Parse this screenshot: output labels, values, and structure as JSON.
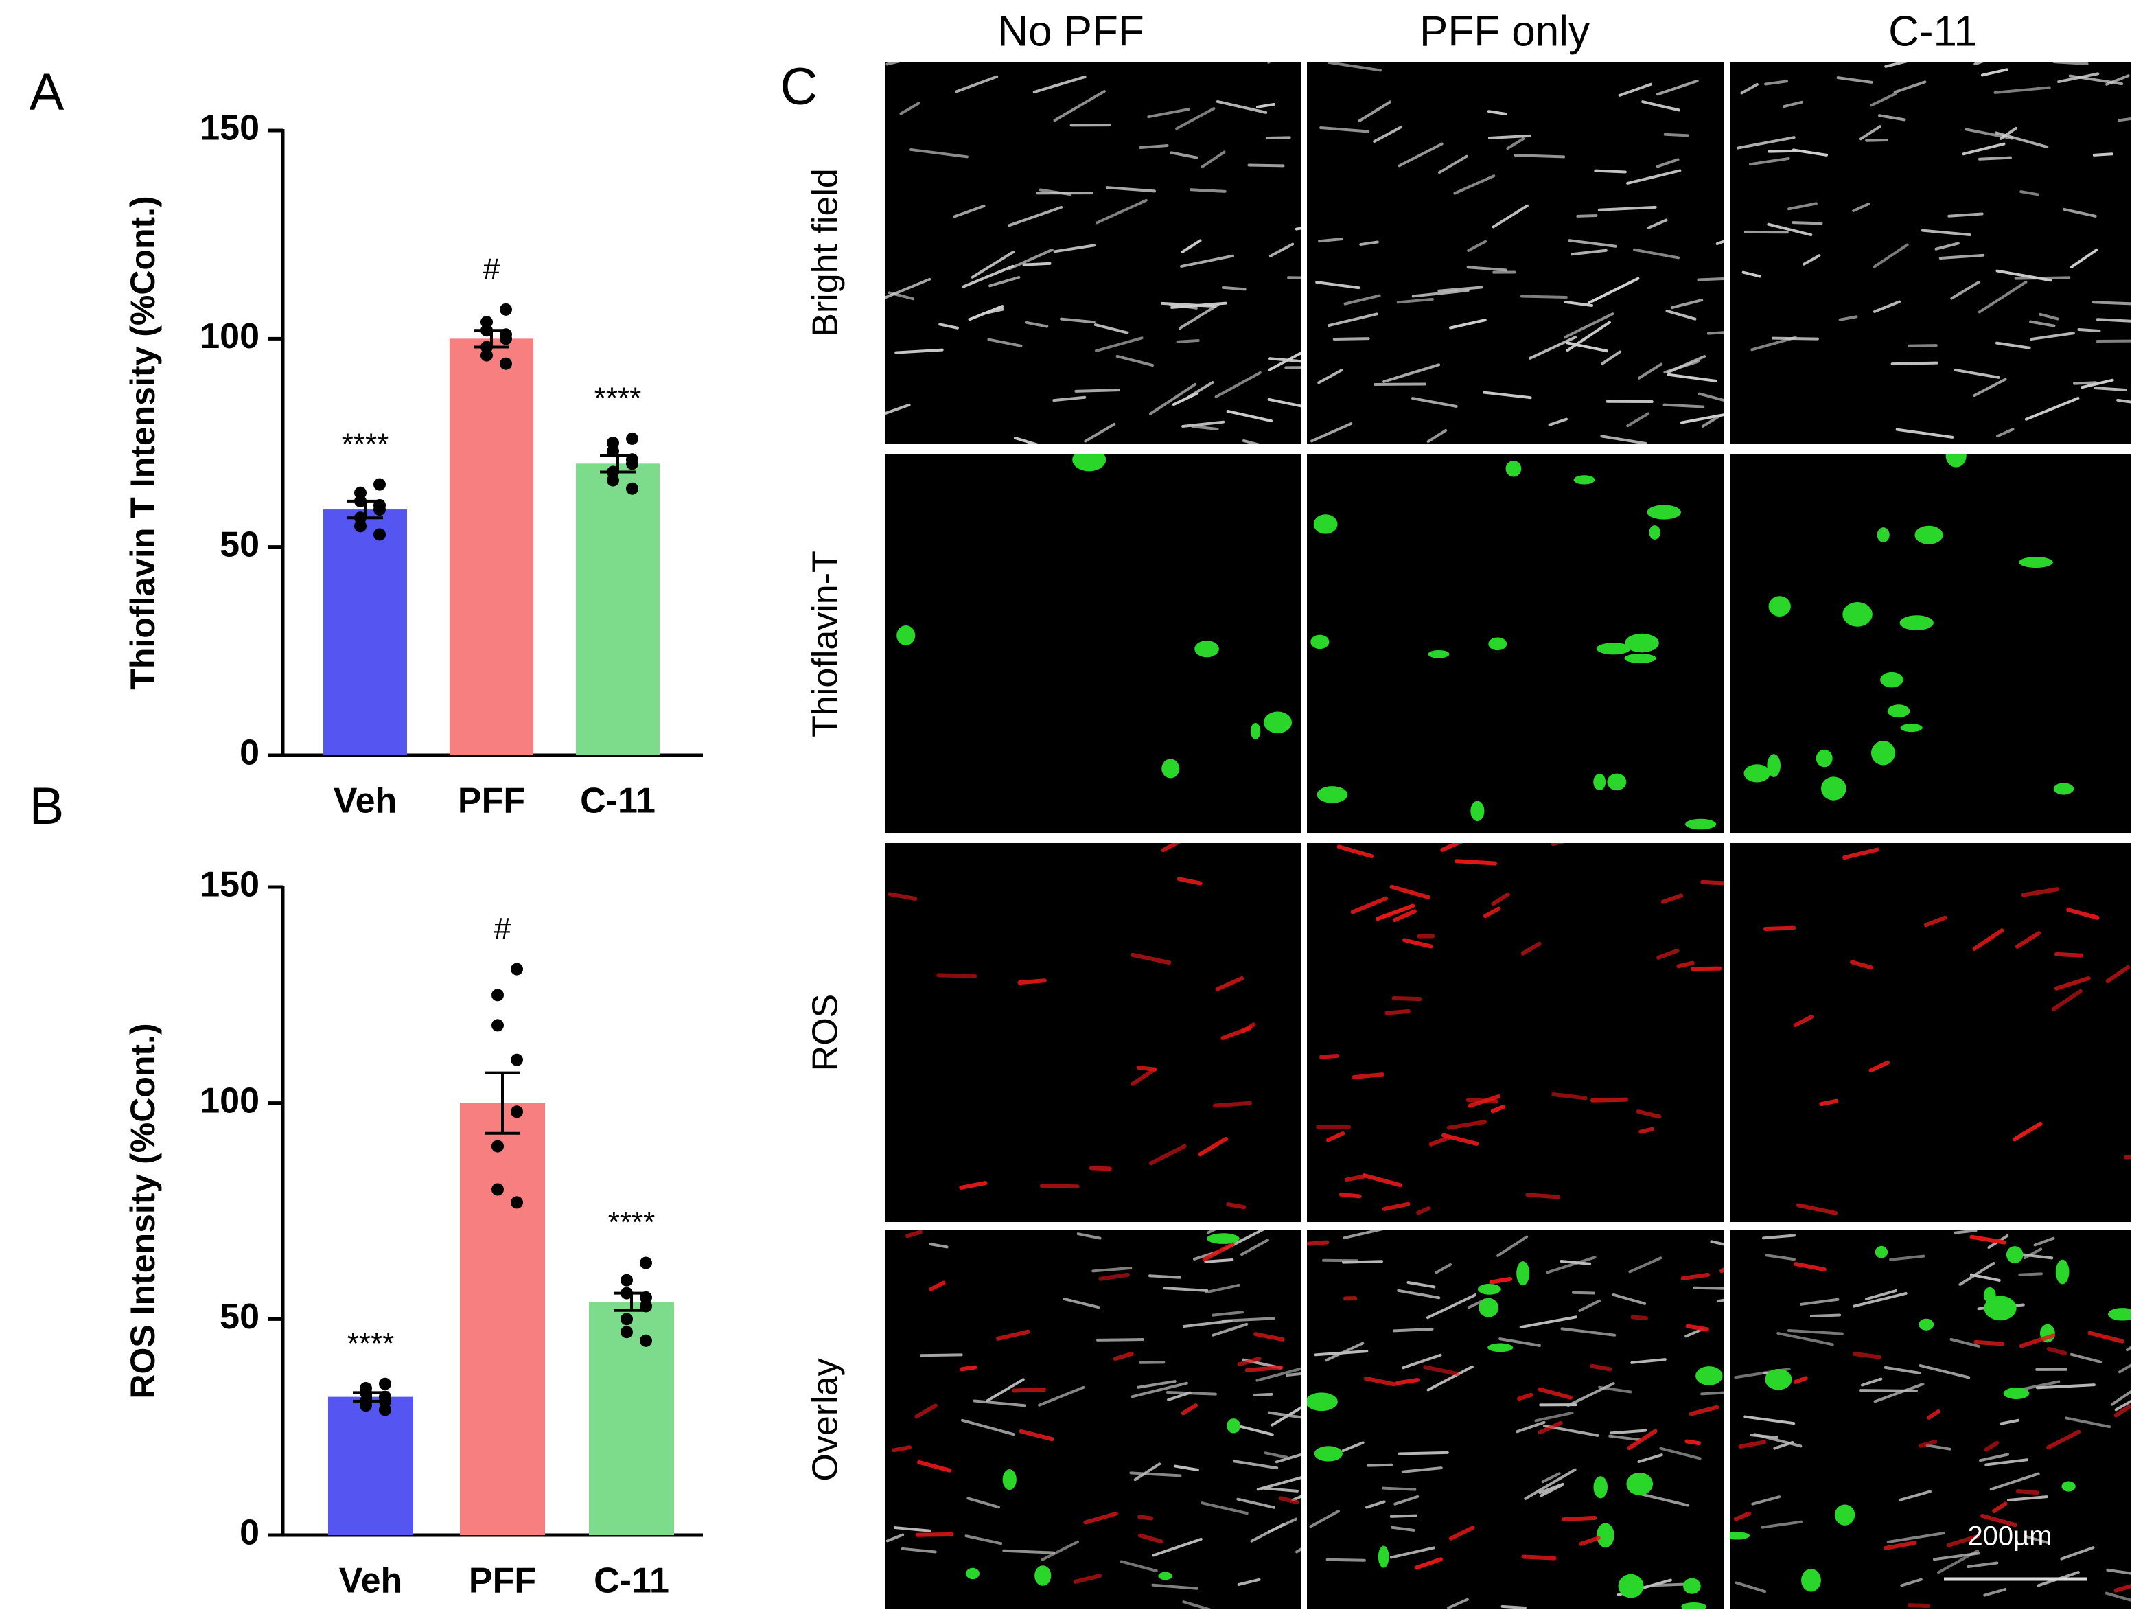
{
  "chart_data": [
    {
      "type": "bar",
      "panel": "A",
      "ylabel": "Thioflavin T Intensity (%Cont.)",
      "categories": [
        "Veh",
        "PFF",
        "C-11"
      ],
      "values": [
        59,
        100,
        70
      ],
      "errors": [
        2,
        2,
        2
      ],
      "colors": [
        "#5555f2",
        "#f77f7f",
        "#7ddc8c"
      ],
      "annotations": [
        "****",
        "#",
        "****"
      ],
      "points": [
        [
          65,
          63,
          61,
          60,
          59,
          57,
          55,
          53
        ],
        [
          107,
          104,
          102,
          101,
          100,
          98,
          96,
          94
        ],
        [
          76,
          75,
          73,
          71,
          70,
          68,
          66,
          64
        ]
      ],
      "ylim": [
        0,
        150
      ],
      "yticks": [
        0,
        50,
        100,
        150
      ]
    },
    {
      "type": "bar",
      "panel": "B",
      "ylabel": "ROS Intensity (%Cont.)",
      "categories": [
        "Veh",
        "PFF",
        "C-11"
      ],
      "values": [
        32,
        100,
        54
      ],
      "errors": [
        1,
        7,
        2
      ],
      "colors": [
        "#5555f2",
        "#f77f7f",
        "#7ddc8c"
      ],
      "annotations": [
        "****",
        "#",
        "****"
      ],
      "points": [
        [
          35,
          34,
          33,
          32,
          31,
          31,
          30,
          29
        ],
        [
          131,
          125,
          118,
          110,
          98,
          90,
          80,
          77
        ],
        [
          63,
          59,
          56,
          55,
          53,
          50,
          47,
          45
        ]
      ],
      "ylim": [
        0,
        150
      ],
      "yticks": [
        0,
        50,
        100,
        150
      ]
    }
  ],
  "images": {
    "panel": "C",
    "columns": [
      "No PFF",
      "PFF only",
      "C-11"
    ],
    "rows": [
      "Bright field",
      "Thioflavin-T",
      "ROS",
      "Overlay"
    ],
    "scale_bar": "200µm"
  }
}
